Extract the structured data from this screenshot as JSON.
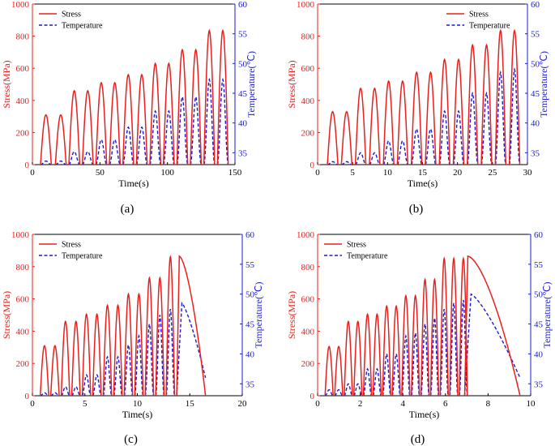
{
  "figure": {
    "colors": {
      "stress": "#e8201e",
      "temperature": "#1a1ad6",
      "axis": "#000000"
    }
  },
  "chart_data": [
    {
      "type": "line",
      "caption": "(a)",
      "xlabel": "Time(s)",
      "ylabel": "Stress(MPa)",
      "y2label": "Temperature(℃)",
      "xlim": [
        0,
        150
      ],
      "ylim": [
        0,
        1000
      ],
      "y2lim": [
        33,
        60
      ],
      "xticks": [
        0,
        50,
        100,
        150
      ],
      "yticks": [
        0,
        200,
        400,
        600,
        800,
        1000
      ],
      "y2ticks": [
        35,
        40,
        45,
        50,
        55,
        60
      ],
      "legend": {
        "position": "top-left",
        "entries": [
          "Stress",
          "Temperature"
        ]
      },
      "cycles": {
        "t_start": [
          6,
          17,
          27,
          37,
          47,
          57,
          67,
          77,
          87,
          97,
          107,
          117,
          127,
          137
        ],
        "duration": 8,
        "stress_peak": [
          310,
          310,
          460,
          460,
          510,
          510,
          560,
          560,
          630,
          630,
          715,
          715,
          835,
          835
        ],
        "temperature_peak": [
          33.6,
          33.6,
          35.2,
          35.2,
          37.2,
          37.2,
          39.3,
          39.3,
          42.0,
          42.0,
          44.4,
          44.4,
          47.3,
          47.3
        ]
      },
      "series": [
        {
          "name": "Stress",
          "axis": "left"
        },
        {
          "name": "Temperature",
          "axis": "right"
        }
      ]
    },
    {
      "type": "line",
      "caption": "(b)",
      "xlabel": "Time(s)",
      "ylabel": "Stress(MPa)",
      "y2label": "Temperature(℃)",
      "xlim": [
        0,
        30
      ],
      "ylim": [
        0,
        1000
      ],
      "y2lim": [
        33,
        60
      ],
      "xticks": [
        0,
        5,
        10,
        15,
        20,
        25,
        30
      ],
      "yticks": [
        0,
        200,
        400,
        600,
        800,
        1000
      ],
      "y2ticks": [
        35,
        40,
        45,
        50,
        55,
        60
      ],
      "legend": {
        "position": "top-right",
        "entries": [
          "Stress",
          "Temperature"
        ]
      },
      "cycles": {
        "t_start": [
          1.4,
          3.4,
          5.4,
          7.4,
          9.4,
          11.4,
          13.4,
          15.4,
          17.4,
          19.4,
          21.4,
          23.4,
          25.4,
          27.4
        ],
        "duration": 1.5,
        "stress_peak": [
          330,
          330,
          475,
          475,
          520,
          520,
          575,
          575,
          655,
          655,
          745,
          745,
          835,
          835
        ],
        "temperature_peak": [
          33.5,
          33.5,
          35.0,
          35.0,
          37.0,
          37.0,
          39.0,
          39.0,
          42.0,
          42.0,
          45.0,
          45.0,
          48.5,
          49.0
        ]
      },
      "series": [
        {
          "name": "Stress",
          "axis": "left"
        },
        {
          "name": "Temperature",
          "axis": "right"
        }
      ]
    },
    {
      "type": "line",
      "caption": "(c)",
      "xlabel": "Time(s)",
      "ylabel": "Stress(MPa)",
      "y2label": "Temperature(℃)",
      "xlim": [
        0,
        20
      ],
      "ylim": [
        0,
        1000
      ],
      "y2lim": [
        33,
        60
      ],
      "xticks": [
        0,
        5,
        10,
        15,
        20
      ],
      "yticks": [
        0,
        200,
        400,
        600,
        800,
        1000
      ],
      "y2ticks": [
        35,
        40,
        45,
        50,
        55,
        60
      ],
      "legend": {
        "position": "top-left",
        "entries": [
          "Stress",
          "Temperature"
        ]
      },
      "cycles": {
        "t_start": [
          0.75,
          1.75,
          2.75,
          3.75,
          4.75,
          5.75,
          6.75,
          7.75,
          8.75,
          9.75,
          10.75,
          11.75,
          12.75
        ],
        "duration": 0.8,
        "stress_peak": [
          310,
          310,
          460,
          460,
          505,
          505,
          560,
          560,
          630,
          630,
          730,
          730,
          860
        ],
        "temperature_peak": [
          33.5,
          33.5,
          34.5,
          34.5,
          36.5,
          36.5,
          39.5,
          39.5,
          41.5,
          43.0,
          45.0,
          46.5,
          47.5
        ]
      },
      "final": {
        "t_start": 13.75,
        "stress_peak_t": 14.0,
        "stress_peak": 865,
        "temperature_peak": 48.5,
        "t_end": 16.5
      },
      "series": [
        {
          "name": "Stress",
          "axis": "left"
        },
        {
          "name": "Temperature",
          "axis": "right"
        }
      ]
    },
    {
      "type": "line",
      "caption": "(d)",
      "xlabel": "Time(s)",
      "ylabel": "Stress(MPa)",
      "y2label": "Temperature(℃)",
      "xlim": [
        0,
        10
      ],
      "ylim": [
        0,
        1000
      ],
      "y2lim": [
        33,
        60
      ],
      "xticks": [
        0,
        2,
        4,
        6,
        8,
        10
      ],
      "yticks": [
        0,
        200,
        400,
        600,
        800,
        1000
      ],
      "y2ticks": [
        35,
        40,
        45,
        50,
        55,
        60
      ],
      "legend": {
        "position": "top-left",
        "entries": [
          "Stress",
          "Temperature"
        ]
      },
      "cycles": {
        "t_start": [
          0.35,
          0.8,
          1.25,
          1.7,
          2.15,
          2.6,
          3.05,
          3.5,
          3.95,
          4.4,
          4.85,
          5.3,
          5.75,
          6.2,
          6.65
        ],
        "duration": 0.38,
        "stress_peak": [
          305,
          305,
          460,
          460,
          505,
          505,
          555,
          555,
          620,
          620,
          720,
          720,
          850,
          850,
          850
        ],
        "temperature_peak": [
          34.0,
          34.0,
          35.0,
          35.0,
          37.5,
          37.5,
          40.0,
          40.0,
          43.0,
          43.5,
          45.0,
          46.0,
          47.5,
          48.5,
          49.0
        ]
      },
      "final": {
        "t_start": 6.9,
        "stress_peak_t": 7.05,
        "stress_peak": 865,
        "temperature_peak": 50.0,
        "t_end": 9.5
      },
      "series": [
        {
          "name": "Stress",
          "axis": "left"
        },
        {
          "name": "Temperature",
          "axis": "right"
        }
      ]
    }
  ]
}
